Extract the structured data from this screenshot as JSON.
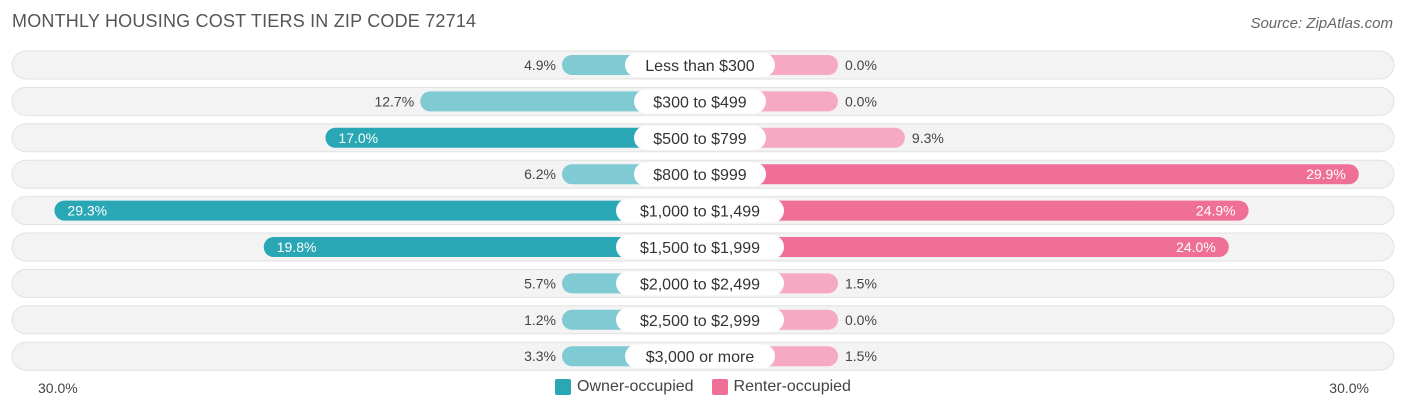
{
  "title": "MONTHLY HOUSING COST TIERS IN ZIP CODE 72714",
  "source": "Source: ZipAtlas.com",
  "colors": {
    "owner": "#2aa7b5",
    "owner_light": "#7fcad3",
    "renter": "#f06f97",
    "renter_light": "#f5a9c2",
    "track": "#efefef"
  },
  "axis": {
    "left_label": "30.0%",
    "right_label": "30.0%"
  },
  "legend": [
    {
      "label": "Owner-occupied",
      "color": "#2aa7b5"
    },
    {
      "label": "Renter-occupied",
      "color": "#f06f97"
    }
  ],
  "chart_data": {
    "type": "bar",
    "orientation": "horizontal-diverging",
    "max": 30.0,
    "categories": [
      "Less than $300",
      "$300 to $499",
      "$500 to $799",
      "$800 to $999",
      "$1,000 to $1,499",
      "$1,500 to $1,999",
      "$2,000 to $2,499",
      "$2,500 to $2,999",
      "$3,000 or more"
    ],
    "series": [
      {
        "name": "Owner-occupied",
        "values": [
          4.9,
          12.7,
          17.0,
          6.2,
          29.3,
          19.8,
          5.7,
          1.2,
          3.3
        ],
        "labels": [
          "4.9%",
          "12.7%",
          "17.0%",
          "6.2%",
          "29.3%",
          "19.8%",
          "5.7%",
          "1.2%",
          "3.3%"
        ]
      },
      {
        "name": "Renter-occupied",
        "values": [
          0.0,
          0.0,
          9.3,
          29.9,
          24.9,
          24.0,
          1.5,
          0.0,
          1.5
        ],
        "labels": [
          "0.0%",
          "0.0%",
          "9.3%",
          "29.9%",
          "24.9%",
          "24.0%",
          "1.5%",
          "0.0%",
          "1.5%"
        ]
      }
    ]
  }
}
